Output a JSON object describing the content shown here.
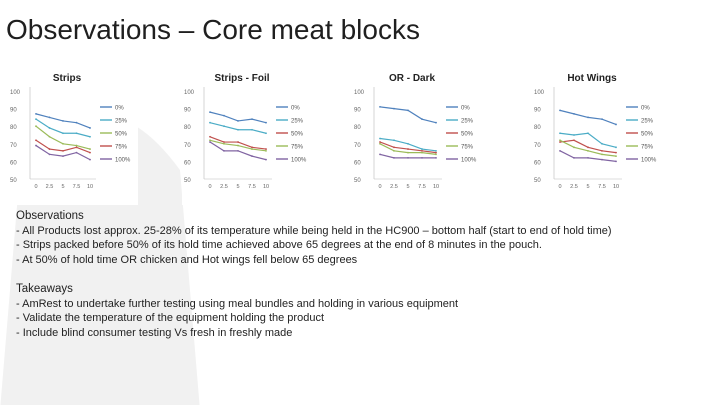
{
  "title": "Observations – Core meat blocks",
  "chart_data": [
    {
      "type": "line",
      "title": "Strips",
      "categories": [
        "0",
        "2.5",
        "5",
        "7.5",
        "10"
      ],
      "xlabel": "",
      "ylabel": "",
      "ylim": [
        50,
        100
      ],
      "yticks": [
        "50",
        "60",
        "70",
        "80",
        "90",
        "100"
      ],
      "series": [
        {
          "name": "0%",
          "color": "#4f81bd",
          "values": [
            87,
            85,
            83,
            82,
            79
          ]
        },
        {
          "name": "25%",
          "color": "#4bacc6",
          "values": [
            84,
            79,
            76,
            76,
            74
          ]
        },
        {
          "name": "50%",
          "color": "#9bbb59",
          "values": [
            80,
            74,
            70,
            69,
            67
          ]
        },
        {
          "name": "75%",
          "color": "#c0504d",
          "values": [
            72,
            67,
            66,
            68,
            65
          ]
        },
        {
          "name": "100%",
          "color": "#8064a2",
          "values": [
            69,
            64,
            63,
            65,
            61
          ]
        }
      ]
    },
    {
      "type": "line",
      "title": "Strips - Foil",
      "categories": [
        "0",
        "2.5",
        "5",
        "7.5",
        "10"
      ],
      "xlabel": "",
      "ylabel": "",
      "ylim": [
        50,
        100
      ],
      "yticks": [
        "50",
        "60",
        "70",
        "80",
        "90",
        "100"
      ],
      "series": [
        {
          "name": "0%",
          "color": "#4f81bd",
          "values": [
            88,
            86,
            83,
            84,
            82
          ]
        },
        {
          "name": "25%",
          "color": "#4bacc6",
          "values": [
            82,
            80,
            78,
            78,
            76
          ]
        },
        {
          "name": "50%",
          "color": "#c0504d",
          "values": [
            74,
            71,
            71,
            68,
            67
          ]
        },
        {
          "name": "75%",
          "color": "#9bbb59",
          "values": [
            72,
            70,
            69,
            67,
            66
          ]
        },
        {
          "name": "100%",
          "color": "#8064a2",
          "values": [
            71,
            66,
            66,
            63,
            61
          ]
        }
      ]
    },
    {
      "type": "line",
      "title": "OR - Dark",
      "categories": [
        "0",
        "2.5",
        "5",
        "7.5",
        "10"
      ],
      "xlabel": "",
      "ylabel": "",
      "ylim": [
        50,
        100
      ],
      "yticks": [
        "50",
        "60",
        "70",
        "80",
        "90",
        "100"
      ],
      "series": [
        {
          "name": "0%",
          "color": "#4f81bd",
          "values": [
            91,
            90,
            89,
            84,
            82
          ]
        },
        {
          "name": "25%",
          "color": "#4bacc6",
          "values": [
            73,
            72,
            70,
            67,
            66
          ]
        },
        {
          "name": "50%",
          "color": "#c0504d",
          "values": [
            71,
            68,
            67,
            66,
            65
          ]
        },
        {
          "name": "75%",
          "color": "#9bbb59",
          "values": [
            70,
            66,
            65,
            65,
            64
          ]
        },
        {
          "name": "100%",
          "color": "#8064a2",
          "values": [
            64,
            62,
            62,
            62,
            62
          ]
        }
      ]
    },
    {
      "type": "line",
      "title": "Hot Wings",
      "categories": [
        "0",
        "2.5",
        "5",
        "7.5",
        "10"
      ],
      "xlabel": "",
      "ylabel": "",
      "ylim": [
        50,
        100
      ],
      "yticks": [
        "50",
        "60",
        "70",
        "80",
        "90",
        "100"
      ],
      "series": [
        {
          "name": "0%",
          "color": "#4f81bd",
          "values": [
            89,
            87,
            85,
            84,
            81
          ]
        },
        {
          "name": "25%",
          "color": "#4bacc6",
          "values": [
            76,
            75,
            76,
            70,
            68
          ]
        },
        {
          "name": "50%",
          "color": "#c0504d",
          "values": [
            71,
            72,
            68,
            66,
            65
          ]
        },
        {
          "name": "75%",
          "color": "#9bbb59",
          "values": [
            72,
            68,
            66,
            64,
            63
          ]
        },
        {
          "name": "100%",
          "color": "#8064a2",
          "values": [
            66,
            62,
            62,
            61,
            60
          ]
        }
      ]
    }
  ],
  "observations": {
    "heading": "Observations",
    "items": [
      "- All Products lost approx. 25-28% of its temperature while being held in the HC900 – bottom half (start to end of hold time)",
      "- Strips packed before 50% of its hold time achieved above 65 degrees at the end of 8 minutes in the pouch.",
      "- At 50% of hold time OR chicken and Hot wings fell below 65 degrees"
    ]
  },
  "takeaways": {
    "heading": "Takeaways",
    "items": [
      "- AmRest to undertake further testing using meal bundles and holding in various equipment",
      "- Validate the temperature of the equipment holding the product",
      "- Include blind consumer testing Vs fresh in freshly made"
    ]
  }
}
